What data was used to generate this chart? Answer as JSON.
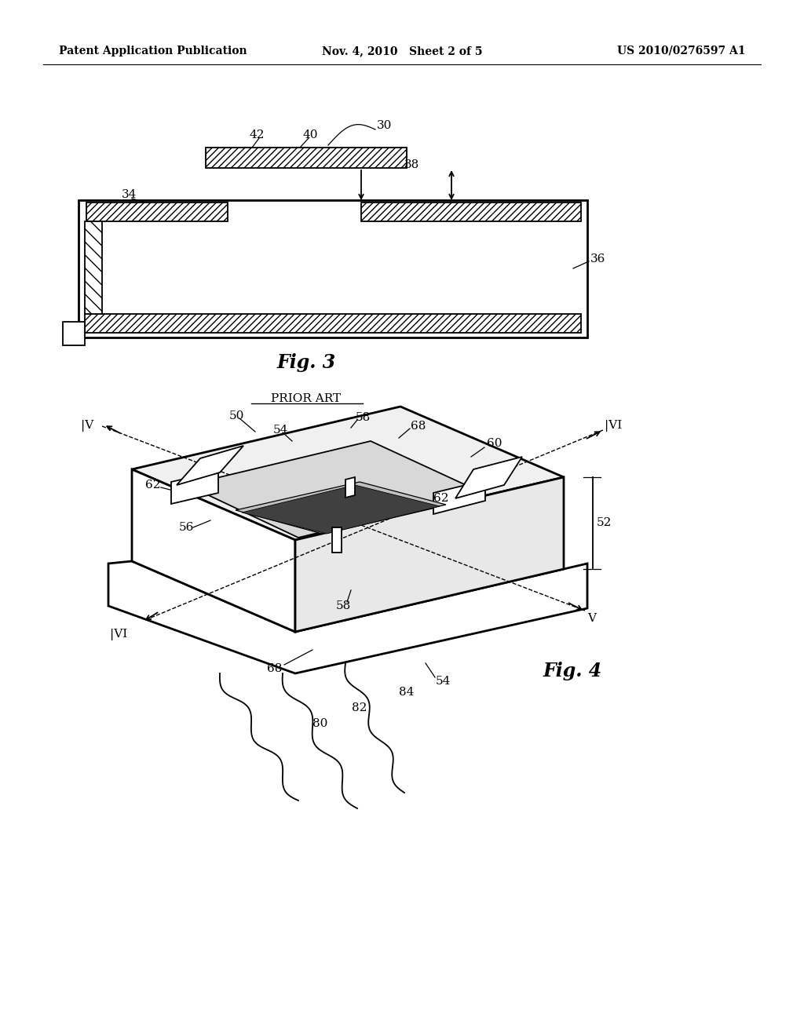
{
  "bg": "#ffffff",
  "header_left": "Patent Application Publication",
  "header_mid": "Nov. 4, 2010   Sheet 2 of 5",
  "header_right": "US 2010/0276597 A1",
  "fig3_title": "Fig. 3",
  "fig4_title": "Fig. 4",
  "prior_art": "PRIOR ART"
}
